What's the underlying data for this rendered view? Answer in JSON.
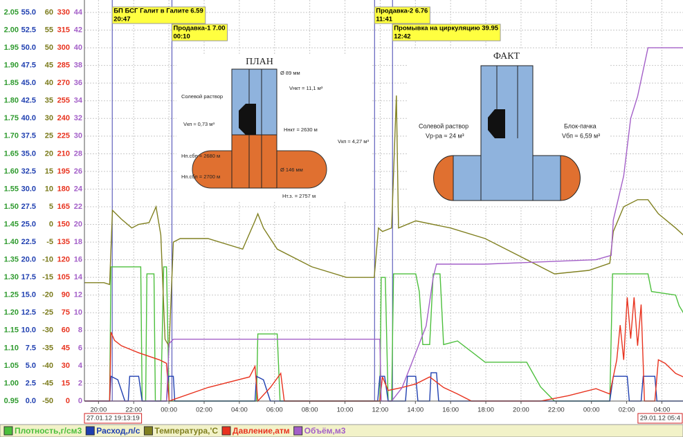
{
  "chart_data": {
    "type": "line",
    "xlim": [
      -0.8,
      33.2
    ],
    "xticks": [
      {
        "value": 0,
        "label": "20:00"
      },
      {
        "value": 2,
        "label": "22:00"
      },
      {
        "value": 4,
        "label": "00:00"
      },
      {
        "value": 6,
        "label": "02:00"
      },
      {
        "value": 8,
        "label": "04:00"
      },
      {
        "value": 10,
        "label": "06:00"
      },
      {
        "value": 12,
        "label": "08:00"
      },
      {
        "value": 14,
        "label": "10:00"
      },
      {
        "value": 16,
        "label": "12:00"
      },
      {
        "value": 18,
        "label": "14:00"
      },
      {
        "value": 20,
        "label": "16:00"
      },
      {
        "value": 22,
        "label": "18:00"
      },
      {
        "value": 24,
        "label": "20:00"
      },
      {
        "value": 26,
        "label": "22:00"
      },
      {
        "value": 28,
        "label": "00:00"
      },
      {
        "value": 30,
        "label": "02:00"
      },
      {
        "value": 32,
        "label": "04:00"
      }
    ],
    "start_label": "27.01.12 19:13:19",
    "end_label": "29.01.12 05:4",
    "grid": true,
    "axes": [
      {
        "color": "#2e9a2e",
        "ylim": [
          0.95,
          2.05
        ],
        "yticks": [
          0.95,
          {
            "value": 1.0,
            "label": "1.00"
          },
          1.05,
          {
            "value": 1.1,
            "label": "1.10"
          },
          1.15,
          {
            "value": 1.2,
            "label": "1.20"
          },
          1.25,
          {
            "value": 1.3,
            "label": "1.30"
          },
          1.35,
          {
            "value": 1.4,
            "label": "1.40"
          },
          1.45,
          {
            "value": 1.5,
            "label": "1.50"
          },
          1.55,
          {
            "value": 1.6,
            "label": "1.60"
          },
          1.65,
          {
            "value": 1.7,
            "label": "1.70"
          },
          1.75,
          {
            "value": 1.8,
            "label": "1.80"
          },
          1.85,
          {
            "value": 1.9,
            "label": "1.90"
          },
          1.95,
          {
            "value": 2.0,
            "label": "2.00"
          },
          2.05
        ]
      },
      {
        "color": "#1f3fb0",
        "ylim": [
          0,
          55
        ],
        "yticks": [
          {
            "value": 0,
            "label": "0.0"
          },
          2.5,
          {
            "value": 5,
            "label": "5.0"
          },
          7.5,
          {
            "value": 10,
            "label": "10.0"
          },
          12.5,
          {
            "value": 15,
            "label": "15.0"
          },
          17.5,
          {
            "value": 20,
            "label": "20.0"
          },
          22.5,
          {
            "value": 25,
            "label": "25.0"
          },
          27.5,
          {
            "value": 30,
            "label": "30.0"
          },
          32.5,
          {
            "value": 35,
            "label": "35.0"
          },
          37.5,
          {
            "value": 40,
            "label": "40.0"
          },
          42.5,
          {
            "value": 45,
            "label": "45.0"
          },
          47.5,
          {
            "value": 50,
            "label": "50.0"
          },
          52.5,
          {
            "value": 55,
            "label": "55.0"
          }
        ]
      },
      {
        "color": "#7a7a1a",
        "ylim": [
          -50,
          60
        ],
        "yticks": [
          -50,
          -45,
          -40,
          -35,
          -30,
          -25,
          -20,
          -15,
          -10,
          -5,
          0,
          5,
          10,
          15,
          20,
          25,
          30,
          35,
          40,
          45,
          50,
          55,
          60
        ]
      },
      {
        "color": "#e8321e",
        "ylim": [
          0,
          330
        ],
        "yticks": [
          0,
          15,
          30,
          45,
          60,
          75,
          90,
          105,
          120,
          135,
          150,
          165,
          180,
          195,
          210,
          225,
          240,
          255,
          270,
          285,
          300,
          315,
          330
        ]
      },
      {
        "color": "#a35fc8",
        "ylim": [
          0,
          44
        ],
        "yticks": [
          0,
          2,
          4,
          6,
          8,
          10,
          12,
          14,
          16,
          18,
          20,
          22,
          24,
          26,
          28,
          30,
          32,
          34,
          36,
          38,
          40,
          42,
          44
        ]
      }
    ],
    "series": [
      {
        "name": "Плотность,г/см3",
        "color": "#4cbf3c",
        "axis": 0,
        "x": [
          -0.79,
          0.63,
          0.71,
          2.4,
          2.48,
          2.68,
          2.75,
          3.15,
          3.23,
          3.54,
          3.7,
          3.86,
          4.01,
          8.97,
          9.05,
          10.15,
          10.31,
          15.98,
          16.06,
          16.29,
          16.45,
          16.65,
          16.76,
          18.02,
          18.22,
          18.42,
          18.81,
          19.01,
          19.4,
          19.6,
          20.39,
          21.18,
          21.96,
          24.32,
          25.11,
          25.9,
          29.04,
          29.2,
          31.21,
          31.41,
          32.78,
          32.98,
          33.22
        ],
        "values": [
          0.95,
          0.95,
          1.33,
          1.33,
          0.95,
          0.95,
          1.31,
          1.31,
          0.95,
          0.95,
          1.33,
          1.33,
          0.95,
          0.95,
          1.14,
          1.14,
          0.95,
          0.95,
          1.3,
          1.3,
          0.95,
          0.95,
          1.31,
          1.31,
          1.26,
          1.11,
          1.11,
          1.31,
          1.31,
          1.11,
          1.12,
          1.09,
          1.06,
          1.06,
          0.99,
          0.95,
          0.95,
          1.31,
          1.31,
          1.26,
          1.25,
          1.22,
          1.2
        ]
      },
      {
        "name": "Расход,л/с",
        "color": "#1f3fb0",
        "axis": 1,
        "x": [
          -0.79,
          0.63,
          0.71,
          1.1,
          1.5,
          1.69,
          1.77,
          2.28,
          2.48,
          3.86,
          3.98,
          4.25,
          4.33,
          8.89,
          8.97,
          9.37,
          9.76,
          15.86,
          15.98,
          16.25,
          16.45,
          17.44,
          17.55,
          18.02,
          18.14,
          18.81,
          18.89,
          19.2,
          19.32,
          29.04,
          29.24,
          30.03,
          30.15,
          30.82,
          30.94,
          31.6,
          31.72,
          33.22
        ],
        "values": [
          0,
          0,
          3.5,
          3,
          0,
          0,
          3.5,
          3.5,
          0,
          0,
          3.5,
          3.5,
          0,
          0,
          3.5,
          3,
          0,
          0,
          3.5,
          3.5,
          0,
          0,
          3.5,
          3.5,
          0,
          0,
          4,
          4,
          0,
          0,
          3.5,
          3.5,
          0,
          0,
          3.5,
          3.5,
          0,
          0
        ]
      },
      {
        "name": "Температура,'С",
        "color": "#808020",
        "axis": 2,
        "x": [
          -0.79,
          0.31,
          0.63,
          0.79,
          1.3,
          1.89,
          2.28,
          2.87,
          3.27,
          3.54,
          3.78,
          4.01,
          4.25,
          4.64,
          6.22,
          8.19,
          8.89,
          9.05,
          9.37,
          10.15,
          12.12,
          14.09,
          15.66,
          15.9,
          16.13,
          16.65,
          16.92,
          17.04,
          18.02,
          19.99,
          21.96,
          23.93,
          25.9,
          27.86,
          29.04,
          29.24,
          29.83,
          30.62,
          31.21,
          31.8,
          32.78,
          33.22
        ],
        "values": [
          -16.5,
          -16.5,
          -17,
          4,
          1.5,
          -1,
          0,
          0.5,
          5,
          -3,
          -32.5,
          -34.5,
          -5,
          -4,
          -4,
          -7,
          1,
          3,
          -1,
          -7,
          -12,
          -15,
          -15,
          -1,
          -2,
          -1,
          36.5,
          -1,
          1,
          -1,
          -4,
          -9,
          -14,
          -13,
          -11,
          -2,
          5,
          7,
          7,
          3,
          -1,
          -3
        ]
      },
      {
        "name": "Давление,атм",
        "color": "#e8321e",
        "axis": 3,
        "x": [
          -0.79,
          0.63,
          0.71,
          0.91,
          1.3,
          2.28,
          3.46,
          3.86,
          4.01,
          6.22,
          8.58,
          8.89,
          9.05,
          9.76,
          10.35,
          10.55,
          15.98,
          16.13,
          16.45,
          17.24,
          18.02,
          18.81,
          19.6,
          20.39,
          21.18,
          25.11,
          26.68,
          28.26,
          29.04,
          29.44,
          29.63,
          29.83,
          30.03,
          30.23,
          30.42,
          30.62,
          30.82,
          31.01,
          31.6,
          31.8,
          32.19,
          32.78,
          33.22
        ],
        "values": [
          0,
          0,
          58.5,
          51.5,
          47,
          41,
          35,
          32,
          0,
          11.5,
          20.5,
          29.5,
          0,
          11.5,
          23.5,
          0,
          0,
          20.5,
          9,
          11.5,
          14.5,
          20.5,
          11.5,
          6,
          0,
          0,
          4.5,
          10.5,
          6,
          35,
          64.5,
          35,
          88,
          53,
          88,
          47,
          82,
          0,
          0,
          35,
          32,
          23.5,
          20.5
        ]
      },
      {
        "name": "Объём,м3",
        "color": "#a35fc8",
        "axis": 4,
        "x": [
          -0.79,
          3.86,
          4.01,
          4.25,
          9.05,
          15.98,
          16.06,
          16.65,
          17.24,
          17.83,
          18.61,
          19.01,
          19.2,
          21.96,
          28.26,
          29.12,
          29.24,
          29.83,
          30.23,
          30.62,
          31.21,
          33.22
        ],
        "values": [
          0,
          0,
          6.5,
          7,
          7,
          7,
          0,
          0,
          1.5,
          4.5,
          8.5,
          14,
          15.5,
          15.5,
          16,
          16.5,
          20.5,
          25.5,
          32,
          34.5,
          40,
          40
        ]
      }
    ],
    "annotations": [
      {
        "text": "БП БСГ Галит в Галите 6.59",
        "time": "20:47",
        "x": 0.78
      },
      {
        "text": "Продавка-1 7.00",
        "time": "00:10",
        "x": 4.17
      },
      {
        "text": "Продавка-2 6.76",
        "time": "11:41",
        "x": 15.68
      },
      {
        "text": "Промывка на циркуляцию 39.95",
        "time": "12:42",
        "x": 16.7
      }
    ],
    "plan": {
      "title": "ПЛАН",
      "labels": [
        "Ø 89 мм",
        "Vнкт = 11,1 м³",
        "Солевой раствор",
        "Vкп ≈ 0,73 м³",
        "Hнкт = 2630 м",
        "Vкп ≈ 4,27 м³",
        "Hп.сбп = 2680 м",
        "Ø 146 мм",
        "Hп.сбп = 2700 м",
        "Hт.з. = 2757 м"
      ]
    },
    "fact": {
      "title": "ФАКТ",
      "labels": [
        "Солевой раствор",
        "Vр-ра ≈ 24 м³",
        "Блок-пачка",
        "Vбп ≈ 6,59 м³"
      ]
    }
  }
}
